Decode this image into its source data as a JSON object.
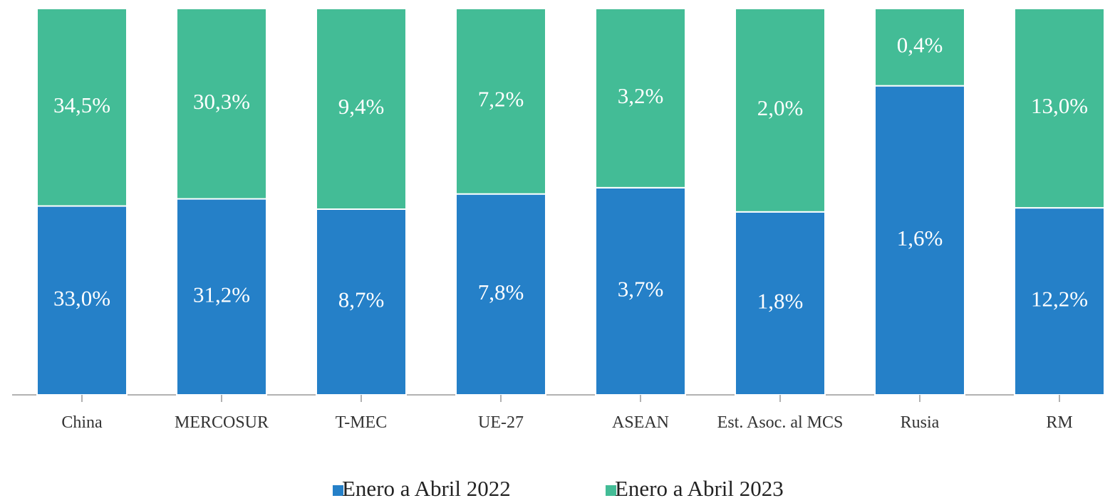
{
  "chart_data": {
    "type": "bar",
    "stacking": "percent",
    "categories": [
      "China",
      "MERCOSUR",
      "T-MEC",
      "UE-27",
      "ASEAN",
      "Est. Asoc. al MCS",
      "Rusia",
      "RM"
    ],
    "series": [
      {
        "name": "Enero a Abril 2022",
        "color": "#2580c8",
        "values": [
          33.0,
          31.2,
          8.7,
          7.8,
          3.7,
          1.8,
          1.6,
          12.2
        ],
        "value_labels": [
          "33,0%",
          "31,2%",
          "8,7%",
          "7,8%",
          "3,7%",
          "1,8%",
          "1,6%",
          "12,2%"
        ]
      },
      {
        "name": "Enero a Abril 2023",
        "color": "#43bc96",
        "values": [
          34.5,
          30.3,
          9.4,
          7.2,
          3.2,
          2.0,
          0.4,
          13.0
        ],
        "value_labels": [
          "34,5%",
          "30,3%",
          "9,4%",
          "7,2%",
          "3,2%",
          "2,0%",
          "0,4%",
          "13,0%"
        ]
      }
    ],
    "legend": "bottom"
  }
}
